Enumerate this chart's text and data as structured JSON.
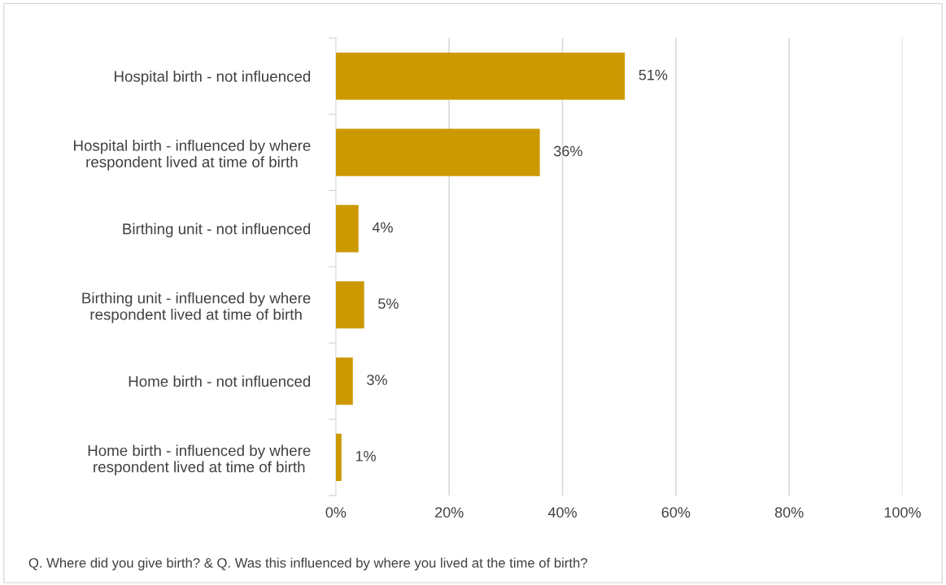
{
  "chart_data": {
    "type": "bar",
    "orientation": "horizontal",
    "categories": [
      "Hospital birth - not influenced",
      "Hospital birth - influenced by where\nrespondent lived at time of birth",
      "Birthing unit - not influenced",
      "Birthing unit - influenced by where\nrespondent lived at time of birth",
      "Home birth - not influenced",
      "Home birth - influenced by where\nrespondent lived at time of birth"
    ],
    "values": [
      51,
      36,
      4,
      5,
      3,
      1
    ],
    "value_labels": [
      "51%",
      "36%",
      "4%",
      "5%",
      "3%",
      "1%"
    ],
    "color": "#cc9900",
    "xlim": [
      0,
      100
    ],
    "xticks": [
      {
        "value": 0,
        "label": "0%"
      },
      {
        "value": 20,
        "label": "20%"
      },
      {
        "value": 40,
        "label": "40%"
      },
      {
        "value": 60,
        "label": "60%"
      },
      {
        "value": 80,
        "label": "80%"
      },
      {
        "value": 100,
        "label": "100%"
      }
    ],
    "grid": "x",
    "legend": false,
    "annotations": [
      "Q. Where did you give birth? & Q. Was this influenced by where you lived at the time of birth?"
    ]
  }
}
